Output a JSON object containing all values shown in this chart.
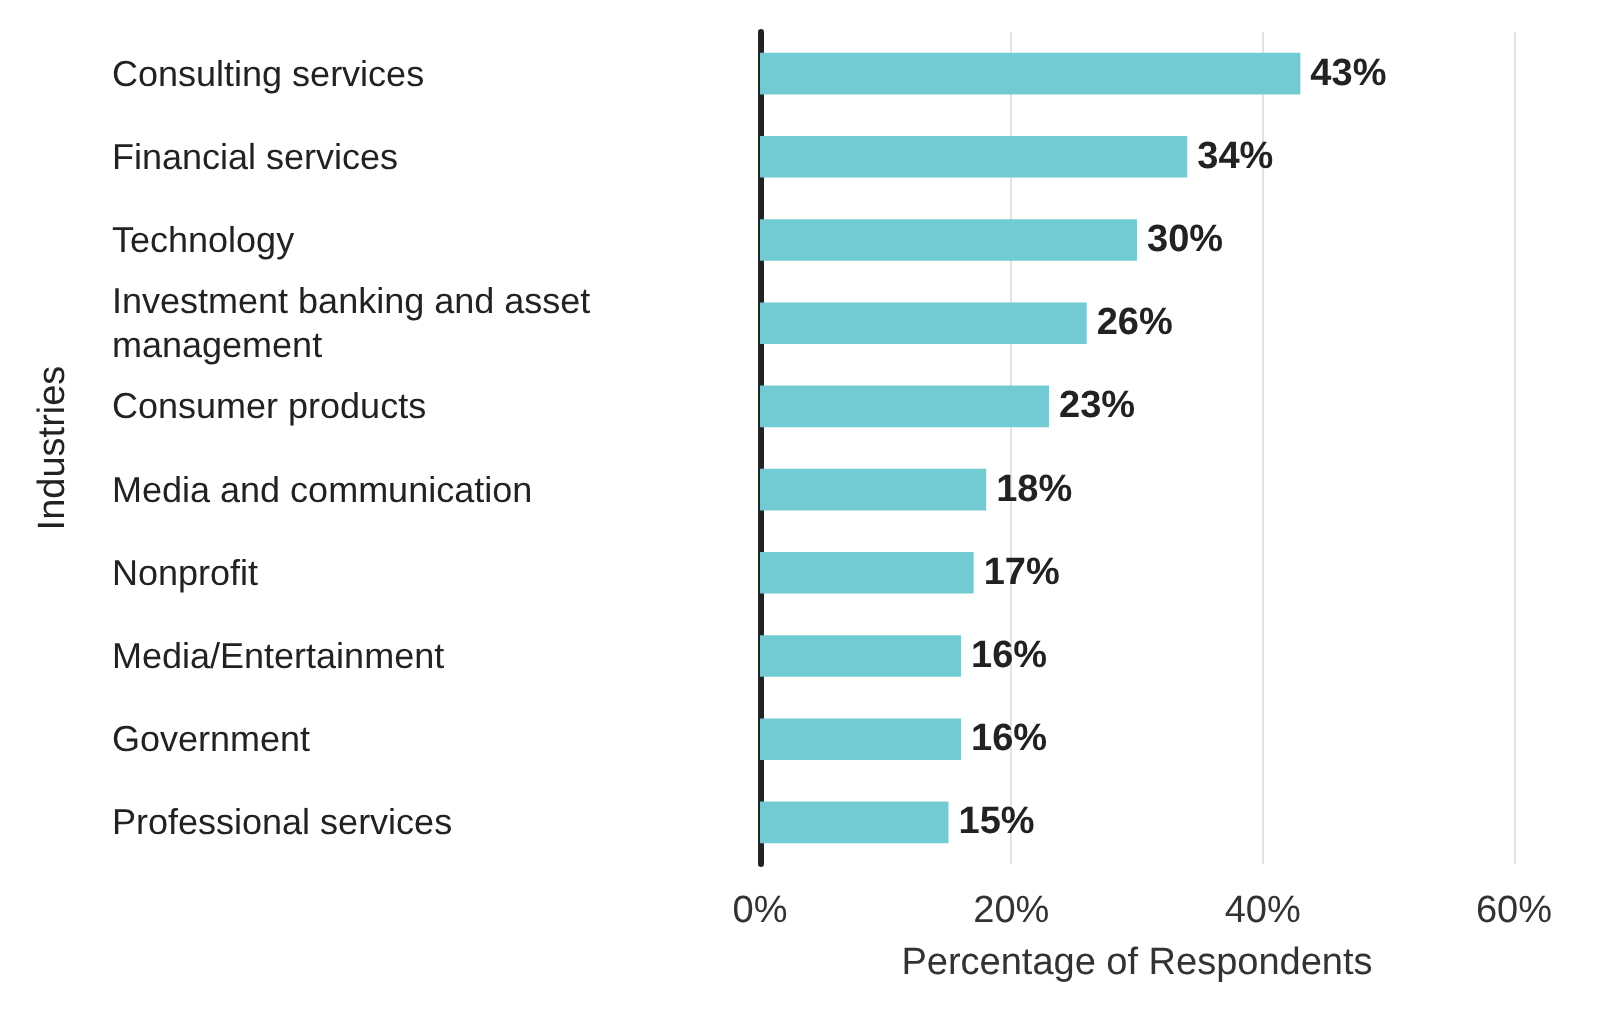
{
  "chart_data": {
    "type": "bar",
    "orientation": "horizontal",
    "xlabel": "Percentage of Respondents",
    "ylabel": "Industries",
    "categories": [
      "Consulting services",
      "Financial services",
      "Technology",
      "Investment banking and asset management",
      "Consumer products",
      "Media and communication",
      "Nonprofit",
      "Media/Entertainment",
      "Government",
      "Professional services"
    ],
    "values": [
      43,
      34,
      30,
      26,
      23,
      18,
      17,
      16,
      16,
      15
    ],
    "value_labels": [
      "43%",
      "34%",
      "30%",
      "26%",
      "23%",
      "18%",
      "17%",
      "16%",
      "16%",
      "15%"
    ],
    "color": "#72cbd3",
    "xlim": [
      0,
      60
    ],
    "xticks": [
      {
        "value": 0,
        "label": "0%"
      },
      {
        "value": 20,
        "label": "20%"
      },
      {
        "value": 40,
        "label": "40%"
      },
      {
        "value": 60,
        "label": "60%"
      }
    ],
    "grid": "x"
  }
}
